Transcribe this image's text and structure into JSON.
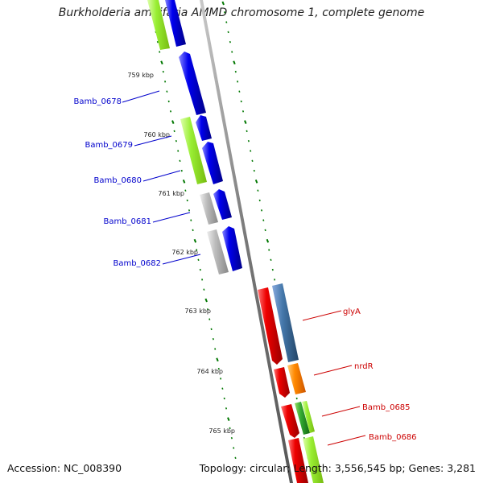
{
  "title": "Burkholderia ambifaria AMMD chromosome 1, complete genome",
  "footer": {
    "accession": "Accession: NC_008390",
    "summary": "Topology: circular; Length: 3,556,545 bp; Genes: 3,281"
  },
  "kbp_labels": [
    "759 kbp",
    "760 kbp",
    "761 kbp",
    "762 kbp",
    "763 kbp",
    "764 kbp",
    "765 kbp"
  ],
  "genes_left": [
    "Bamb_0678",
    "Bamb_0679",
    "Bamb_0680",
    "Bamb_0681",
    "Bamb_0682"
  ],
  "genes_right": [
    "glyA",
    "nrdR",
    "Bamb_0685",
    "Bamb_0686"
  ],
  "colors": {
    "backbone": "#888888",
    "tick": "#007700",
    "left_label": "#0000cc",
    "right_label": "#cc0000",
    "cds_blue": "#0000ee",
    "cds_red": "#ee0000",
    "cog_green": "#99ee33",
    "cog_gray": "#aaaaaa",
    "cog_steel": "#4477aa",
    "cog_orange": "#ff8800",
    "cog_darkgreen": "#228822"
  }
}
